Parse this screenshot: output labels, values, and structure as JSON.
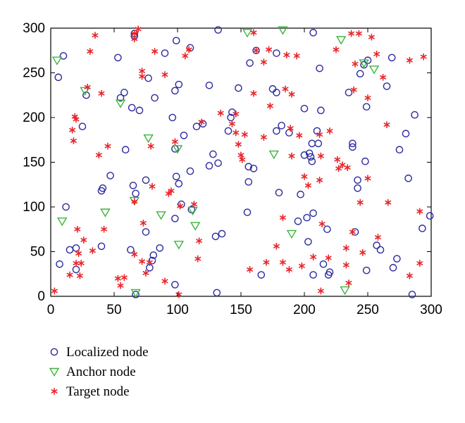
{
  "chart_data": {
    "type": "scatter",
    "title": "",
    "xlabel": "",
    "ylabel": "",
    "xlim": [
      0,
      300
    ],
    "ylim": [
      0,
      300
    ],
    "xticks": [
      0,
      50,
      100,
      150,
      200,
      250,
      300
    ],
    "yticks": [
      0,
      50,
      100,
      150,
      200,
      250,
      300
    ],
    "grid": false,
    "legend_position": "below-left",
    "series": [
      {
        "name": "Localized node",
        "marker": "circle",
        "color": "#2b2b9e",
        "points": [
          [
            7,
            36
          ],
          [
            12,
            100
          ],
          [
            15,
            52
          ],
          [
            20,
            54
          ],
          [
            20,
            30
          ],
          [
            25,
            190
          ],
          [
            6,
            245
          ],
          [
            10,
            269
          ],
          [
            28,
            225
          ],
          [
            40,
            118
          ],
          [
            41,
            121
          ],
          [
            40,
            56
          ],
          [
            47,
            135
          ],
          [
            53,
            267
          ],
          [
            55,
            222
          ],
          [
            58,
            228
          ],
          [
            59,
            164
          ],
          [
            63,
            52
          ],
          [
            64,
            211
          ],
          [
            65,
            124
          ],
          [
            66,
            291
          ],
          [
            66,
            294
          ],
          [
            67,
            115
          ],
          [
            67,
            2
          ],
          [
            70,
            208
          ],
          [
            75,
            130
          ],
          [
            75,
            72
          ],
          [
            77,
            244
          ],
          [
            78,
            32
          ],
          [
            80,
            40
          ],
          [
            81,
            46
          ],
          [
            82,
            222
          ],
          [
            86,
            54
          ],
          [
            90,
            272
          ],
          [
            96,
            200
          ],
          [
            98,
            87
          ],
          [
            98,
            230
          ],
          [
            98,
            165
          ],
          [
            99,
            134
          ],
          [
            98,
            13
          ],
          [
            101,
            237
          ],
          [
            99,
            286
          ],
          [
            101,
            126
          ],
          [
            103,
            103
          ],
          [
            105,
            180
          ],
          [
            110,
            278
          ],
          [
            110,
            140
          ],
          [
            111,
            97
          ],
          [
            115,
            190
          ],
          [
            120,
            193
          ],
          [
            125,
            236
          ],
          [
            125,
            146
          ],
          [
            128,
            159
          ],
          [
            130,
            67
          ],
          [
            132,
            149
          ],
          [
            135,
            70
          ],
          [
            131,
            4
          ],
          [
            132,
            298
          ],
          [
            140,
            185
          ],
          [
            143,
            206
          ],
          [
            142,
            200
          ],
          [
            148,
            233
          ],
          [
            155,
            94
          ],
          [
            156,
            128
          ],
          [
            156,
            145
          ],
          [
            157,
            261
          ],
          [
            160,
            143
          ],
          [
            162,
            275
          ],
          [
            166,
            24
          ],
          [
            175,
            232
          ],
          [
            178,
            185
          ],
          [
            178,
            228
          ],
          [
            178,
            272
          ],
          [
            180,
            116
          ],
          [
            182,
            191
          ],
          [
            188,
            183
          ],
          [
            195,
            84
          ],
          [
            197,
            114
          ],
          [
            200,
            210
          ],
          [
            200,
            158
          ],
          [
            202,
            88
          ],
          [
            203,
            61
          ],
          [
            204,
            160
          ],
          [
            205,
            156
          ],
          [
            206,
            151
          ],
          [
            206,
            171
          ],
          [
            207,
            93
          ],
          [
            207,
            295
          ],
          [
            207,
            24
          ],
          [
            210,
            185
          ],
          [
            211,
            171
          ],
          [
            213,
            208
          ],
          [
            212,
            255
          ],
          [
            215,
            36
          ],
          [
            218,
            75
          ],
          [
            219,
            24
          ],
          [
            220,
            27
          ],
          [
            235,
            228
          ],
          [
            238,
            167
          ],
          [
            238,
            171
          ],
          [
            240,
            72
          ],
          [
            242,
            130
          ],
          [
            242,
            121
          ],
          [
            244,
            249
          ],
          [
            247,
            259
          ],
          [
            248,
            151
          ],
          [
            249,
            29
          ],
          [
            249,
            212
          ],
          [
            250,
            264
          ],
          [
            257,
            57
          ],
          [
            260,
            52
          ],
          [
            265,
            235
          ],
          [
            269,
            267
          ],
          [
            270,
            32
          ],
          [
            273,
            42
          ],
          [
            275,
            164
          ],
          [
            280,
            182
          ],
          [
            282,
            132
          ],
          [
            285,
            2
          ],
          [
            287,
            203
          ],
          [
            293,
            76
          ],
          [
            299,
            90
          ]
        ]
      },
      {
        "name": "Anchor node",
        "marker": "triangle-down",
        "color": "#3cb43c",
        "points": [
          [
            5,
            264
          ],
          [
            9,
            84
          ],
          [
            27,
            230
          ],
          [
            43,
            94
          ],
          [
            55,
            216
          ],
          [
            66,
            107
          ],
          [
            67,
            4
          ],
          [
            77,
            177
          ],
          [
            87,
            91
          ],
          [
            100,
            165
          ],
          [
            101,
            58
          ],
          [
            112,
            96
          ],
          [
            114,
            79
          ],
          [
            155,
            295
          ],
          [
            176,
            159
          ],
          [
            183,
            298
          ],
          [
            190,
            70
          ],
          [
            229,
            287
          ],
          [
            232,
            7
          ],
          [
            247,
            261
          ],
          [
            255,
            254
          ]
        ]
      },
      {
        "name": "Target node",
        "marker": "asterisk",
        "color": "#e8252a",
        "points": [
          [
            3,
            6
          ],
          [
            15,
            24
          ],
          [
            17,
            186
          ],
          [
            18,
            174
          ],
          [
            19,
            201
          ],
          [
            20,
            198
          ],
          [
            20,
            37
          ],
          [
            21,
            75
          ],
          [
            22,
            48
          ],
          [
            23,
            23
          ],
          [
            24,
            37
          ],
          [
            26,
            63
          ],
          [
            29,
            234
          ],
          [
            31,
            274
          ],
          [
            33,
            51
          ],
          [
            35,
            292
          ],
          [
            38,
            158
          ],
          [
            40,
            227
          ],
          [
            42,
            75
          ],
          [
            45,
            168
          ],
          [
            53,
            20
          ],
          [
            55,
            12
          ],
          [
            58,
            21
          ],
          [
            66,
            47
          ],
          [
            66,
            106
          ],
          [
            66,
            288
          ],
          [
            66,
            294
          ],
          [
            69,
            299
          ],
          [
            72,
            252
          ],
          [
            72,
            246
          ],
          [
            72,
            39
          ],
          [
            73,
            82
          ],
          [
            75,
            26
          ],
          [
            78,
            38
          ],
          [
            80,
            123
          ],
          [
            79,
            168
          ],
          [
            82,
            274
          ],
          [
            90,
            17
          ],
          [
            90,
            248
          ],
          [
            93,
            115
          ],
          [
            95,
            118
          ],
          [
            98,
            173
          ],
          [
            101,
            2
          ],
          [
            102,
            101
          ],
          [
            106,
            269
          ],
          [
            109,
            276
          ],
          [
            113,
            103
          ],
          [
            116,
            42
          ],
          [
            117,
            62
          ],
          [
            119,
            195
          ],
          [
            134,
            205
          ],
          [
            143,
            193
          ],
          [
            146,
            183
          ],
          [
            146,
            204
          ],
          [
            148,
            170
          ],
          [
            150,
            158
          ],
          [
            151,
            153
          ],
          [
            153,
            181
          ],
          [
            157,
            30
          ],
          [
            160,
            295
          ],
          [
            160,
            227
          ],
          [
            162,
            275
          ],
          [
            168,
            178
          ],
          [
            168,
            262
          ],
          [
            170,
            38
          ],
          [
            172,
            276
          ],
          [
            173,
            213
          ],
          [
            178,
            56
          ],
          [
            183,
            38
          ],
          [
            183,
            88
          ],
          [
            185,
            232
          ],
          [
            186,
            270
          ],
          [
            188,
            30
          ],
          [
            189,
            188
          ],
          [
            190,
            157
          ],
          [
            190,
            226
          ],
          [
            194,
            269
          ],
          [
            196,
            180
          ],
          [
            198,
            34
          ],
          [
            200,
            134
          ],
          [
            203,
            124
          ],
          [
            207,
            44
          ],
          [
            212,
            130
          ],
          [
            212,
            181
          ],
          [
            213,
            6
          ],
          [
            213,
            157
          ],
          [
            214,
            81
          ],
          [
            219,
            43
          ],
          [
            220,
            185
          ],
          [
            225,
            276
          ],
          [
            226,
            153
          ],
          [
            227,
            143
          ],
          [
            230,
            147
          ],
          [
            233,
            35
          ],
          [
            233,
            54
          ],
          [
            234,
            144
          ],
          [
            235,
            15
          ],
          [
            237,
            294
          ],
          [
            238,
            72
          ],
          [
            239,
            231
          ],
          [
            240,
            260
          ],
          [
            243,
            294
          ],
          [
            244,
            105
          ],
          [
            246,
            49
          ],
          [
            250,
            132
          ],
          [
            250,
            222
          ],
          [
            253,
            290
          ],
          [
            257,
            271
          ],
          [
            258,
            66
          ],
          [
            262,
            245
          ],
          [
            265,
            192
          ],
          [
            266,
            105
          ],
          [
            283,
            264
          ],
          [
            283,
            23
          ],
          [
            291,
            95
          ],
          [
            291,
            37
          ],
          [
            294,
            268
          ]
        ]
      }
    ]
  }
}
